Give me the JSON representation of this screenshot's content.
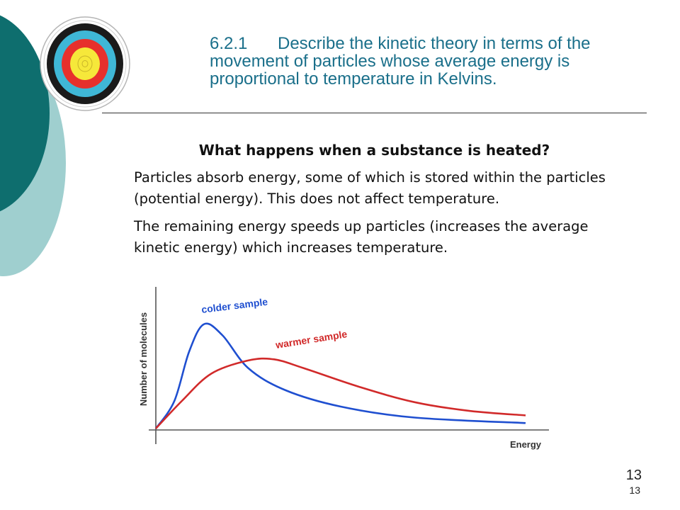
{
  "slide": {
    "objective_number": "6.2.1",
    "objective_text": "Describe the kinetic theory in terms of the movement of particles whose average energy is proportional to temperature in Kelvins.",
    "question": "What happens when a substance is heated?",
    "bullets": [
      "Particles absorb energy, some of which is stored within the particles (potential energy). This does not affect temperature.",
      "The remaining energy speeds up particles (increases the average kinetic energy) which increases temperature."
    ],
    "bullet_marker": "",
    "page_number": "13",
    "page_number_small": "13"
  },
  "theme": {
    "dark_teal": "#0e6e6e",
    "light_teal": "#9fcfcf",
    "heading_color": "#1a6f8a"
  },
  "target_icon": {
    "name": "archery-target-icon"
  },
  "chart_data": {
    "type": "line",
    "xlabel": "Energy",
    "ylabel": "Number of molecules",
    "series": [
      {
        "name": "colder sample",
        "color": "#1f4fd0",
        "points": [
          [
            0,
            0
          ],
          [
            0.05,
            0.25
          ],
          [
            0.09,
            0.7
          ],
          [
            0.13,
            0.95
          ],
          [
            0.18,
            0.85
          ],
          [
            0.25,
            0.55
          ],
          [
            0.35,
            0.35
          ],
          [
            0.5,
            0.2
          ],
          [
            0.7,
            0.1
          ],
          [
            1,
            0.05
          ]
        ]
      },
      {
        "name": "warmer sample",
        "color": "#d12a2a",
        "points": [
          [
            0,
            0
          ],
          [
            0.07,
            0.25
          ],
          [
            0.15,
            0.5
          ],
          [
            0.25,
            0.62
          ],
          [
            0.32,
            0.63
          ],
          [
            0.4,
            0.55
          ],
          [
            0.55,
            0.38
          ],
          [
            0.7,
            0.24
          ],
          [
            0.85,
            0.16
          ],
          [
            1,
            0.12
          ]
        ]
      }
    ]
  }
}
